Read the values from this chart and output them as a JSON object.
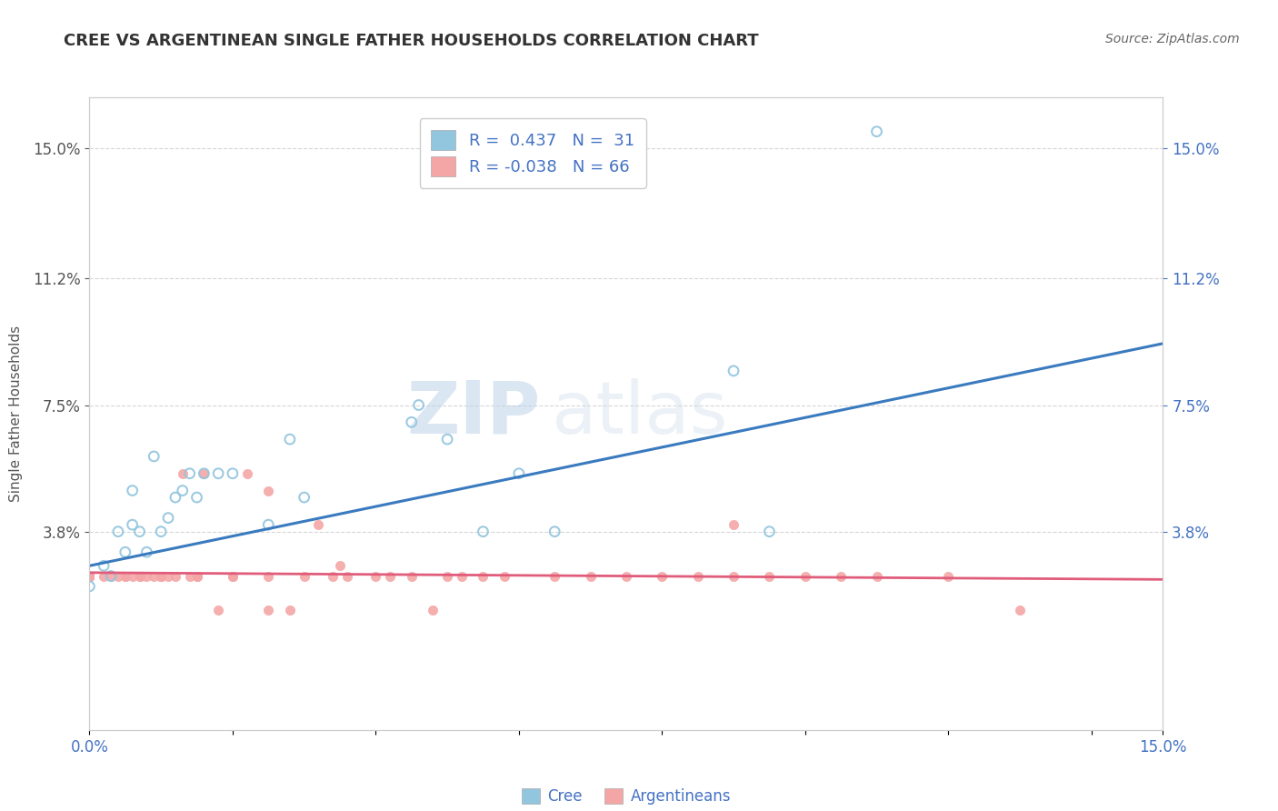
{
  "title": "CREE VS ARGENTINEAN SINGLE FATHER HOUSEHOLDS CORRELATION CHART",
  "source_text": "Source: ZipAtlas.com",
  "xlabel": "",
  "ylabel": "Single Father Households",
  "xlim": [
    0.0,
    0.15
  ],
  "ylim": [
    -0.02,
    0.165
  ],
  "xtick_labels": [
    "0.0%",
    "",
    "",
    "",
    "",
    "",
    "",
    "",
    "15.0%"
  ],
  "xtick_positions": [
    0.0,
    0.02,
    0.04,
    0.06,
    0.08,
    0.1,
    0.11,
    0.13,
    0.15
  ],
  "ytick_labels": [
    "3.8%",
    "7.5%",
    "11.2%",
    "15.0%"
  ],
  "ytick_positions": [
    0.038,
    0.075,
    0.112,
    0.15
  ],
  "right_ytick_labels": [
    "3.8%",
    "7.5%",
    "11.2%",
    "15.0%"
  ],
  "right_ytick_positions": [
    0.038,
    0.075,
    0.112,
    0.15
  ],
  "watermark_zip": "ZIP",
  "watermark_atlas": "atlas",
  "legend_text_cree": "R =  0.437   N =  31",
  "legend_text_arg": "R = -0.038   N = 66",
  "cree_color": "#92c5de",
  "arg_color": "#f4a6a6",
  "cree_line_color": "#3a7abf",
  "arg_line_color": "#e05c7a",
  "cree_scatter_x": [
    0.0,
    0.002,
    0.003,
    0.004,
    0.005,
    0.006,
    0.006,
    0.007,
    0.008,
    0.009,
    0.01,
    0.011,
    0.012,
    0.013,
    0.014,
    0.015,
    0.016,
    0.018,
    0.02,
    0.025,
    0.028,
    0.03,
    0.045,
    0.046,
    0.05,
    0.055,
    0.06,
    0.065,
    0.09,
    0.095,
    0.11
  ],
  "cree_scatter_y": [
    0.022,
    0.028,
    0.025,
    0.038,
    0.032,
    0.04,
    0.05,
    0.038,
    0.032,
    0.06,
    0.038,
    0.042,
    0.048,
    0.05,
    0.055,
    0.048,
    0.055,
    0.055,
    0.055,
    0.04,
    0.065,
    0.048,
    0.07,
    0.075,
    0.065,
    0.038,
    0.055,
    0.038,
    0.085,
    0.038,
    0.155
  ],
  "arg_scatter_x": [
    0.0,
    0.0,
    0.0,
    0.0,
    0.0,
    0.0,
    0.0,
    0.0,
    0.0,
    0.0,
    0.0,
    0.0,
    0.002,
    0.003,
    0.004,
    0.005,
    0.005,
    0.006,
    0.007,
    0.007,
    0.008,
    0.009,
    0.01,
    0.01,
    0.01,
    0.011,
    0.012,
    0.013,
    0.014,
    0.015,
    0.015,
    0.016,
    0.018,
    0.02,
    0.02,
    0.022,
    0.025,
    0.025,
    0.025,
    0.028,
    0.03,
    0.032,
    0.034,
    0.035,
    0.036,
    0.04,
    0.042,
    0.045,
    0.048,
    0.05,
    0.052,
    0.055,
    0.058,
    0.065,
    0.07,
    0.075,
    0.08,
    0.085,
    0.09,
    0.09,
    0.095,
    0.1,
    0.105,
    0.11,
    0.12,
    0.13
  ],
  "arg_scatter_y": [
    0.025,
    0.025,
    0.025,
    0.025,
    0.025,
    0.025,
    0.025,
    0.025,
    0.025,
    0.025,
    0.025,
    0.025,
    0.025,
    0.025,
    0.025,
    0.025,
    0.025,
    0.025,
    0.025,
    0.025,
    0.025,
    0.025,
    0.025,
    0.025,
    0.025,
    0.025,
    0.025,
    0.055,
    0.025,
    0.025,
    0.025,
    0.055,
    0.015,
    0.025,
    0.025,
    0.055,
    0.015,
    0.025,
    0.05,
    0.015,
    0.025,
    0.04,
    0.025,
    0.028,
    0.025,
    0.025,
    0.025,
    0.025,
    0.015,
    0.025,
    0.025,
    0.025,
    0.025,
    0.025,
    0.025,
    0.025,
    0.025,
    0.025,
    0.025,
    0.04,
    0.025,
    0.025,
    0.025,
    0.025,
    0.025,
    0.015
  ],
  "cree_trend_x0": 0.0,
  "cree_trend_x1": 0.15,
  "cree_trend_y0": 0.028,
  "cree_trend_y1": 0.093,
  "arg_trend_x0": 0.0,
  "arg_trend_x1": 0.15,
  "arg_trend_y0": 0.026,
  "arg_trend_y1": 0.024,
  "background_color": "#ffffff",
  "plot_bg_color": "#ffffff",
  "grid_color": "#cccccc",
  "title_color": "#333333",
  "axis_color": "#555555",
  "right_axis_color": "#4472c4",
  "source_color": "#666666"
}
